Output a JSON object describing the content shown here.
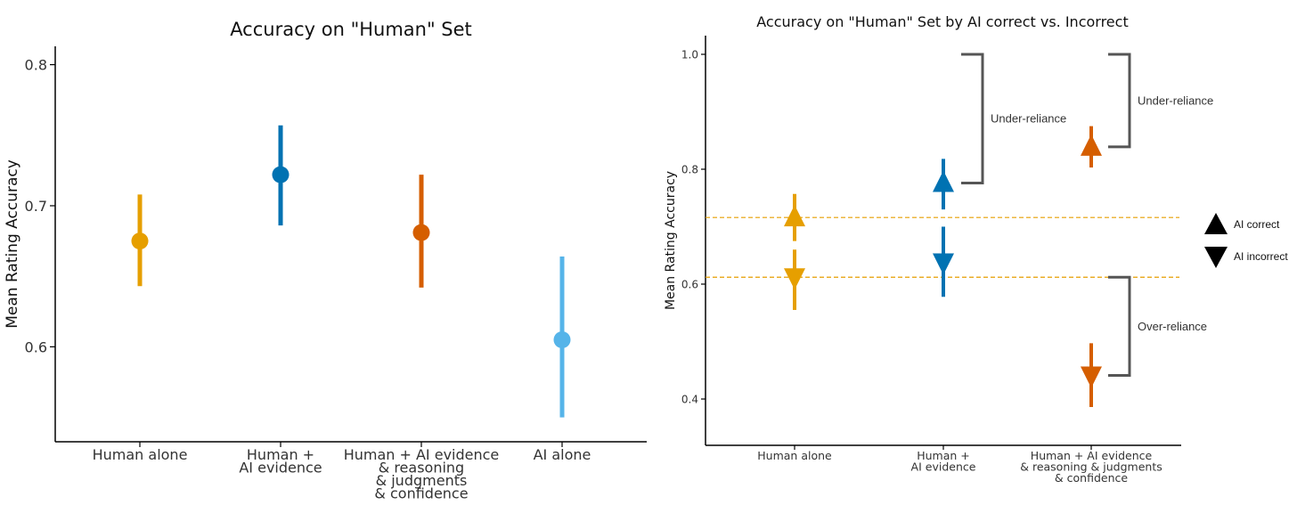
{
  "chart_data": [
    {
      "type": "scatter",
      "title": "Accuracy on \"Human\" Set",
      "xlabel": "",
      "ylabel": "Mean Rating Accuracy",
      "ylim": [
        0.54,
        0.82
      ],
      "yticks": [
        "0.6",
        "0.7",
        "0.8"
      ],
      "categories": [
        [
          "Human alone"
        ],
        [
          "Human +",
          "AI evidence"
        ],
        [
          "Human + AI evidence",
          "& reasoning",
          "& judgments",
          "& confidence"
        ],
        [
          "AI alone"
        ]
      ],
      "points": [
        {
          "category": "Human alone",
          "mean": 0.675,
          "ci": [
            0.643,
            0.708
          ],
          "color": "#E69F00"
        },
        {
          "category": "Human + AI evidence",
          "mean": 0.722,
          "ci": [
            0.686,
            0.757
          ],
          "color": "#0072B2"
        },
        {
          "category": "Human + AI evidence & reasoning & judgments & confidence",
          "mean": 0.681,
          "ci": [
            0.642,
            0.722
          ],
          "color": "#D55E00"
        },
        {
          "category": "AI alone",
          "mean": 0.605,
          "ci": [
            0.55,
            0.664
          ],
          "color": "#56B4E9"
        }
      ]
    },
    {
      "type": "scatter",
      "title": "Accuracy on \"Human\" Set by AI correct vs. Incorrect",
      "xlabel": "",
      "ylabel": "Mean Rating Accuracy",
      "ylim": [
        0.32,
        1.03
      ],
      "yticks": [
        "0.4",
        "0.6",
        "0.8",
        "1.0"
      ],
      "categories": [
        [
          "Human alone"
        ],
        [
          "Human +",
          "AI evidence"
        ],
        [
          "Human + AI evidence",
          "& reasoning & judgments",
          "& confidence"
        ]
      ],
      "reference_lines": [
        0.716,
        0.612
      ],
      "points": [
        {
          "category": "Human alone",
          "group": "AI correct",
          "mean": 0.716,
          "ci": [
            0.675,
            0.757
          ],
          "color": "#E69F00"
        },
        {
          "category": "Human alone",
          "group": "AI incorrect",
          "mean": 0.612,
          "ci": [
            0.555,
            0.66
          ],
          "color": "#E69F00"
        },
        {
          "category": "Human + AI evidence",
          "group": "AI correct",
          "mean": 0.776,
          "ci": [
            0.73,
            0.818
          ],
          "color": "#0072B2"
        },
        {
          "category": "Human + AI evidence",
          "group": "AI incorrect",
          "mean": 0.638,
          "ci": [
            0.578,
            0.7
          ],
          "color": "#0072B2"
        },
        {
          "category": "Human + AI evidence & reasoning & judgments & confidence",
          "group": "AI correct",
          "mean": 0.839,
          "ci": [
            0.803,
            0.875
          ],
          "color": "#D55E00"
        },
        {
          "category": "Human + AI evidence & reasoning & judgments & confidence",
          "group": "AI incorrect",
          "mean": 0.441,
          "ci": [
            0.386,
            0.497
          ],
          "color": "#D55E00"
        }
      ],
      "annotations": [
        {
          "label": "Under-reliance",
          "from": 1.0,
          "to": 0.776
        },
        {
          "label": "Under-reliance",
          "from": 1.0,
          "to": 0.839
        },
        {
          "label": "Over-reliance",
          "from": 0.612,
          "to": 0.441
        }
      ],
      "legend": [
        {
          "label": "AI correct",
          "marker": "triangle-up"
        },
        {
          "label": "AI incorrect",
          "marker": "triangle-down"
        }
      ],
      "legend_position": "right"
    }
  ]
}
